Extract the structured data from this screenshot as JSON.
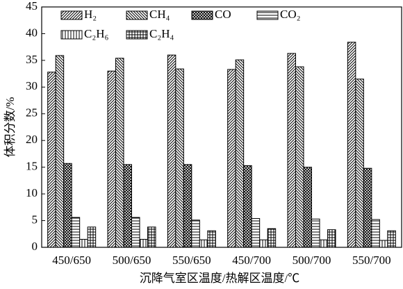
{
  "chart_data": {
    "type": "bar",
    "x_label": "沉降气室区温度/热解区温度/℃",
    "y_label": "体积分数/%",
    "categories": [
      "450/650",
      "500/650",
      "550/650",
      "450/700",
      "500/700",
      "550/700"
    ],
    "series": [
      {
        "name": "H₂",
        "color": "#000000",
        "pattern": "diag",
        "values": [
          32.8,
          33.0,
          36.0,
          33.3,
          36.3,
          38.4
        ]
      },
      {
        "name": "CH₄",
        "color": "#000000",
        "pattern": "backdiag",
        "values": [
          35.9,
          35.4,
          33.4,
          35.1,
          33.8,
          31.5
        ]
      },
      {
        "name": "CO",
        "color": "#000000",
        "pattern": "cross",
        "values": [
          15.7,
          15.5,
          15.5,
          15.3,
          15.0,
          14.8
        ]
      },
      {
        "name": "CO₂",
        "color": "#000000",
        "pattern": "horiz",
        "values": [
          5.6,
          5.6,
          5.1,
          5.4,
          5.3,
          5.2
        ]
      },
      {
        "name": "C₂H₆",
        "color": "#000000",
        "pattern": "vert",
        "values": [
          1.5,
          1.5,
          1.4,
          1.4,
          1.4,
          1.3
        ]
      },
      {
        "name": "C₂H₄",
        "color": "#000000",
        "pattern": "grid",
        "values": [
          3.8,
          3.8,
          3.1,
          3.5,
          3.3,
          3.1
        ]
      }
    ],
    "ylim": [
      0,
      45
    ],
    "yticks": [
      0,
      5,
      10,
      15,
      20,
      25,
      30,
      35,
      40,
      45
    ],
    "legend": "upper left",
    "grid": false
  }
}
